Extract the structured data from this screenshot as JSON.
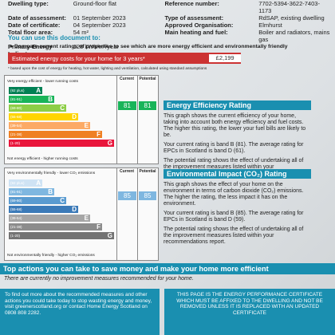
{
  "header": {
    "rows": [
      {
        "l1": "Dwelling type:",
        "v1": "Ground-floor flat",
        "l2": "Reference number:",
        "v2": "7702-5394-3622-7403-1173"
      },
      {
        "l1": "Date of assessment:",
        "v1": "01 September 2023",
        "l2": "Type of assessment:",
        "v2": "RdSAP, existing dwelling"
      },
      {
        "l1": "Date of certificate:",
        "v1": "04 September 2023",
        "l2": "Approved Organisation:",
        "v2": "Elmhurst"
      },
      {
        "l1": "Total floor area:",
        "v1": "54 m²",
        "l2": "Main heating and fuel:",
        "v2": "Boiler and radiators, mains gas"
      },
      {
        "l1": "Primary Energy Indicator:",
        "v1": "128 kWh/m²/year",
        "l2": "",
        "v2": ""
      }
    ]
  },
  "use": {
    "title": "You can use this document to:",
    "compare": "Compare current ratings of properties to see which are more energy efficient and environmentally friendly",
    "cost_label": "Estimated energy costs for your home for 3 years*",
    "cost_value": "£2,199",
    "footnote": "* based upon the cost of energy for heating, hot water, lighting and ventilation, calculated using standard assumptions"
  },
  "energy": {
    "top_note": "Very energy efficient - lower running costs",
    "bottom_note": "Not energy efficient - higher running costs",
    "current_hd": "Current",
    "potential_hd": "Potential",
    "current": "81",
    "potential": "81",
    "bands": [
      {
        "range": "(92 plus)",
        "letter": "A",
        "color": "#008054",
        "frac": 0.28
      },
      {
        "range": "(81-91)",
        "letter": "B",
        "color": "#19b459",
        "frac": 0.38
      },
      {
        "range": "(69-80)",
        "letter": "C",
        "color": "#8dce46",
        "frac": 0.48
      },
      {
        "range": "(55-68)",
        "letter": "D",
        "color": "#ffd500",
        "frac": 0.58
      },
      {
        "range": "(39-54)",
        "letter": "E",
        "color": "#fcaa65",
        "frac": 0.68
      },
      {
        "range": "(21-38)",
        "letter": "F",
        "color": "#ef8023",
        "frac": 0.78
      },
      {
        "range": "(1-20)",
        "letter": "G",
        "color": "#e9153b",
        "frac": 0.88
      }
    ]
  },
  "env": {
    "top_note": "Very environmentally friendly - lower CO₂ emissions",
    "bottom_note": "Not environmentally friendly - higher CO₂ emissions",
    "current_hd": "Current",
    "potential_hd": "Potential",
    "current": "85",
    "potential": "85",
    "bands": [
      {
        "range": "(92 plus)",
        "letter": "A",
        "color": "#cfe3f4",
        "frac": 0.28
      },
      {
        "range": "(81-91)",
        "letter": "B",
        "color": "#7fb7e0",
        "frac": 0.38
      },
      {
        "range": "(69-80)",
        "letter": "C",
        "color": "#5a9bd0",
        "frac": 0.48
      },
      {
        "range": "(55-68)",
        "letter": "D",
        "color": "#3b7ab8",
        "frac": 0.58
      },
      {
        "range": "(39-54)",
        "letter": "E",
        "color": "#a6a6a6",
        "frac": 0.68
      },
      {
        "range": "(21-38)",
        "letter": "F",
        "color": "#8c8c8c",
        "frac": 0.78
      },
      {
        "range": "(1-20)",
        "letter": "G",
        "color": "#737373",
        "frac": 0.88
      }
    ]
  },
  "eer": {
    "title": "Energy Efficiency Rating",
    "p1": "This graph shows the current efficiency of your home, taking into account both energy efficiency and fuel costs. The higher this rating, the lower your fuel bills are likely to be.",
    "p2": "Your current rating is band B (81). The average rating for EPCs in Scotland is band D (61).",
    "p3": "The potential rating shows the effect of undertaking all of the improvement measures listed within your recommendations report."
  },
  "eir": {
    "title": "Environmental Impact (CO₂) Rating",
    "p1": "This graph shows the effect of your home on the environment in terms of carbon dioxide (CO₂) emissions. The higher the rating, the less impact it has on the environment.",
    "p2": "Your current rating is band B (85). The average rating for EPCs in Scotland is band D (59).",
    "p3": "The potential rating shows the effect of undertaking all of the improvement measures listed within your recommendations report."
  },
  "actions": {
    "title": "Top actions you can take to save money and make your home more efficient",
    "none": "There are currently no improvement measures recommended for your home.",
    "left_box": "To find out more about the recommended measures and other actions you could take today to stop wasting energy and money, visit greenerscotland.org or contact Home Energy Scotland on 0808 808 2282.",
    "right_box": "THIS PAGE IS THE ENERGY PERFORMANCE CERTIFICATE WHICH MUST BE AFFIXED TO THE DWELLING AND NOT BE REMOVED UNLESS IT IS REPLACED WITH AN UPDATED CERTIFICATE"
  }
}
